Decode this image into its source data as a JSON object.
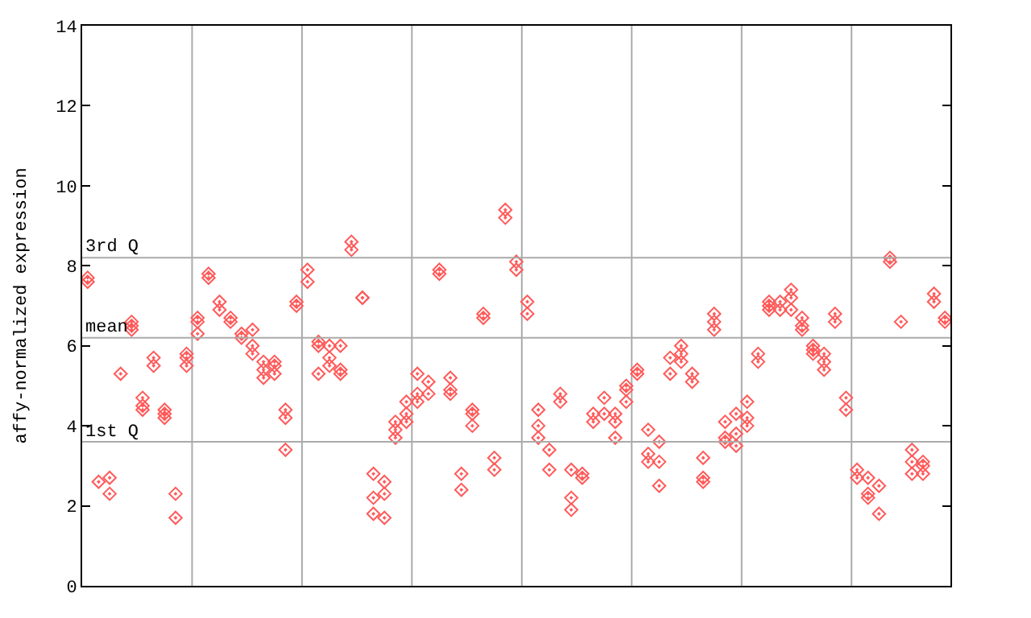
{
  "chart_data": {
    "type": "scatter",
    "ylabel": "affy-normalized expression",
    "categories": [
      null,
      null,
      null,
      null,
      null,
      null,
      null,
      null,
      null,
      null,
      null,
      null,
      null,
      null,
      null,
      null,
      null,
      null,
      null,
      null,
      null,
      null,
      null,
      null,
      null,
      null,
      null,
      null,
      null,
      null,
      null,
      null,
      null,
      null,
      null,
      null,
      null,
      null,
      null,
      null,
      null,
      null,
      null,
      null,
      null,
      null,
      null,
      null,
      null,
      null,
      null,
      null,
      null,
      null,
      null,
      null,
      null,
      null,
      null,
      null,
      null,
      null,
      null,
      null,
      null,
      null,
      null,
      null,
      null,
      null,
      null,
      null,
      null,
      null,
      null,
      null,
      null,
      null,
      null
    ],
    "series": [
      {
        "color": "#ff5a5a",
        "values": [
          7.7,
          2.6,
          2.7,
          5.3,
          6.6,
          4.7,
          5.7,
          4.4,
          2.3,
          5.8,
          6.7,
          7.8,
          7.1,
          6.7,
          6.3,
          6.4,
          5.6,
          5.6,
          4.4,
          7.1,
          7.9,
          6.1,
          6.0,
          6.0,
          8.6,
          7.2,
          2.8,
          2.6,
          4.1,
          4.6,
          5.3,
          5.1,
          7.9,
          5.2,
          2.8,
          4.4,
          6.8,
          3.2,
          9.4,
          8.1,
          7.1,
          4.4,
          3.4,
          4.8,
          2.9,
          2.8,
          4.3,
          4.7,
          4.3,
          5.0,
          5.4,
          3.9,
          3.6,
          5.7,
          6.0,
          5.3,
          3.2,
          6.8,
          4.1,
          4.3,
          4.6,
          5.8,
          7.1,
          7.1,
          7.4,
          6.7,
          6.0,
          5.8,
          6.8,
          4.7,
          2.9,
          2.7,
          2.5,
          8.2,
          6.6,
          3.4,
          3.1,
          7.3,
          6.7
        ]
      },
      {
        "color": "#ff5a5a",
        "values": [
          7.6,
          null,
          2.3,
          null,
          6.5,
          4.5,
          5.5,
          4.3,
          1.7,
          5.7,
          6.6,
          7.7,
          6.9,
          6.6,
          6.2,
          6.0,
          5.4,
          5.5,
          4.2,
          7.0,
          7.6,
          6.0,
          5.7,
          5.4,
          8.4,
          7.2,
          2.2,
          2.3,
          3.9,
          4.3,
          4.8,
          4.8,
          7.8,
          4.9,
          2.4,
          4.3,
          6.7,
          2.9,
          9.2,
          7.9,
          6.8,
          4.0,
          2.9,
          4.6,
          2.2,
          2.7,
          4.1,
          4.3,
          4.1,
          4.9,
          5.3,
          3.3,
          3.1,
          5.3,
          5.8,
          5.1,
          2.7,
          6.6,
          3.7,
          3.8,
          4.2,
          5.6,
          7.0,
          6.9,
          7.2,
          6.5,
          5.9,
          5.6,
          6.6,
          4.4,
          2.7,
          2.3,
          1.8,
          8.1,
          null,
          3.1,
          3.0,
          7.1,
          6.6
        ]
      },
      {
        "color": "#ff5a5a",
        "values": [
          null,
          null,
          null,
          null,
          6.4,
          4.4,
          null,
          4.2,
          null,
          5.5,
          6.3,
          null,
          null,
          null,
          null,
          5.8,
          5.2,
          5.3,
          3.4,
          null,
          null,
          5.3,
          5.5,
          5.3,
          null,
          null,
          1.8,
          1.7,
          3.7,
          4.1,
          4.6,
          null,
          null,
          4.8,
          null,
          4.0,
          null,
          null,
          null,
          null,
          null,
          3.7,
          null,
          null,
          1.9,
          null,
          null,
          null,
          3.7,
          4.6,
          null,
          3.1,
          2.5,
          null,
          5.6,
          null,
          2.6,
          6.4,
          3.6,
          3.5,
          4.0,
          null,
          6.9,
          null,
          6.9,
          6.4,
          5.8,
          5.4,
          null,
          null,
          null,
          2.2,
          null,
          null,
          null,
          2.8,
          2.8,
          null,
          null
        ]
      }
    ],
    "ylim": [
      0,
      14
    ],
    "yticks": [
      0,
      2,
      4,
      6,
      8,
      10,
      12,
      14
    ],
    "tick_labels": "y",
    "grid": "x",
    "marker": "diamond",
    "ref_lines": [
      {
        "axis": "y",
        "value": 8.2,
        "label": "3rd Q",
        "color": "#aaaaaa"
      },
      {
        "axis": "y",
        "value": 6.2,
        "label": "mean",
        "color": "#aaaaaa"
      },
      {
        "axis": "y",
        "value": 3.6,
        "label": "1st Q",
        "color": "#aaaaaa"
      }
    ]
  }
}
